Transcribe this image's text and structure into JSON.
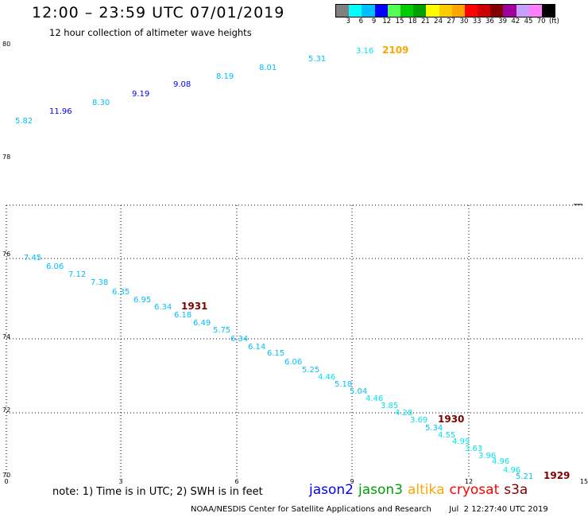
{
  "header": {
    "title": "12:00 – 23:59 UTC 07/01/2019",
    "subtitle": "12 hour collection of altimeter wave heights"
  },
  "colorbar": {
    "colors": [
      "#808080",
      "#00ffff",
      "#00bfff",
      "#0000ff",
      "#55ff55",
      "#00cc00",
      "#00a000",
      "#ffff00",
      "#ffcc00",
      "#ffa500",
      "#ff0000",
      "#cc0000",
      "#800000",
      "#a000a0",
      "#c8a0ff",
      "#ff80ff",
      "#000000"
    ],
    "labels": [
      "3",
      "6",
      "9",
      "12",
      "15",
      "18",
      "21",
      "24",
      "27",
      "30",
      "33",
      "36",
      "39",
      "42",
      "45",
      "70",
      "(ft)"
    ]
  },
  "map": {
    "lat_labels": [
      "80",
      "78",
      "76",
      "74",
      "72",
      "70"
    ],
    "lon_labels": [
      "0",
      "3",
      "6",
      "9",
      "12",
      "15"
    ]
  },
  "tracks": [
    {
      "time": "2109",
      "time_color": "#ffa500",
      "observations": [
        {
          "value": "5.82",
          "color": "#00bfff"
        },
        {
          "value": "11.96",
          "color": "#0000ff"
        },
        {
          "value": "8.30",
          "color": "#00bfff"
        },
        {
          "value": "9.19",
          "color": "#0000ff"
        },
        {
          "value": "9.08",
          "color": "#0000ff"
        },
        {
          "value": "8.19",
          "color": "#00bfff"
        },
        {
          "value": "8.01",
          "color": "#00bfff"
        },
        {
          "value": "5.31",
          "color": "#00bfff"
        },
        {
          "value": "3.16",
          "color": "#00e5ee"
        }
      ]
    },
    {
      "time": "1931",
      "time_color": "#800000",
      "observations": [
        {
          "value": "7.45",
          "color": "#00bfff"
        },
        {
          "value": "6.06",
          "color": "#00bfff"
        },
        {
          "value": "7.12",
          "color": "#00bfff"
        },
        {
          "value": "7.38",
          "color": "#00bfff"
        },
        {
          "value": "6.35",
          "color": "#00bfff"
        },
        {
          "value": "6.95",
          "color": "#00bfff"
        },
        {
          "value": "6.34",
          "color": "#00bfff"
        },
        {
          "value": "6.18",
          "color": "#00bfff"
        },
        {
          "value": "6.49",
          "color": "#00bfff"
        },
        {
          "value": "5.75",
          "color": "#00bfff"
        }
      ]
    },
    {
      "time": "1930",
      "time_color": "#800000",
      "observations": [
        {
          "value": "6.34",
          "color": "#00bfff"
        },
        {
          "value": "6.14",
          "color": "#00bfff"
        },
        {
          "value": "6.15",
          "color": "#00bfff"
        },
        {
          "value": "6.06",
          "color": "#00bfff"
        },
        {
          "value": "5.25",
          "color": "#00bfff"
        },
        {
          "value": "4.46",
          "color": "#00e5ee"
        },
        {
          "value": "5.18",
          "color": "#00bfff"
        },
        {
          "value": "5.04",
          "color": "#00bfff"
        },
        {
          "value": "4.46",
          "color": "#00e5ee"
        },
        {
          "value": "3.85",
          "color": "#00e5ee"
        },
        {
          "value": "4.28",
          "color": "#00e5ee"
        },
        {
          "value": "3.69",
          "color": "#00e5ee"
        },
        {
          "value": "5.34",
          "color": "#00bfff"
        }
      ]
    },
    {
      "time": "1929",
      "time_color": "#800000",
      "observations": [
        {
          "value": "4.55",
          "color": "#00e5ee"
        },
        {
          "value": "4.99",
          "color": "#00e5ee"
        },
        {
          "value": "3.63",
          "color": "#00e5ee"
        },
        {
          "value": "3.96",
          "color": "#00e5ee"
        },
        {
          "value": "4.96",
          "color": "#00e5ee"
        },
        {
          "value": "4.96",
          "color": "#00e5ee"
        },
        {
          "value": "5.21",
          "color": "#00bfff"
        }
      ]
    }
  ],
  "footer": {
    "note": "note: 1) Time is in UTC; 2) SWH is in feet",
    "satellites": [
      {
        "name": "jason2",
        "color": "#0000ff"
      },
      {
        "name": "jason3",
        "color": "#00a000"
      },
      {
        "name": "altika",
        "color": "#ffa500"
      },
      {
        "name": "cryosat",
        "color": "#ff0000"
      },
      {
        "name": "s3a",
        "color": "#800000"
      }
    ],
    "credit": "NOAA/NESDIS Center for Satellite Applications and Research",
    "timestamp": "Jul  2 12:27:40 UTC 2019"
  }
}
